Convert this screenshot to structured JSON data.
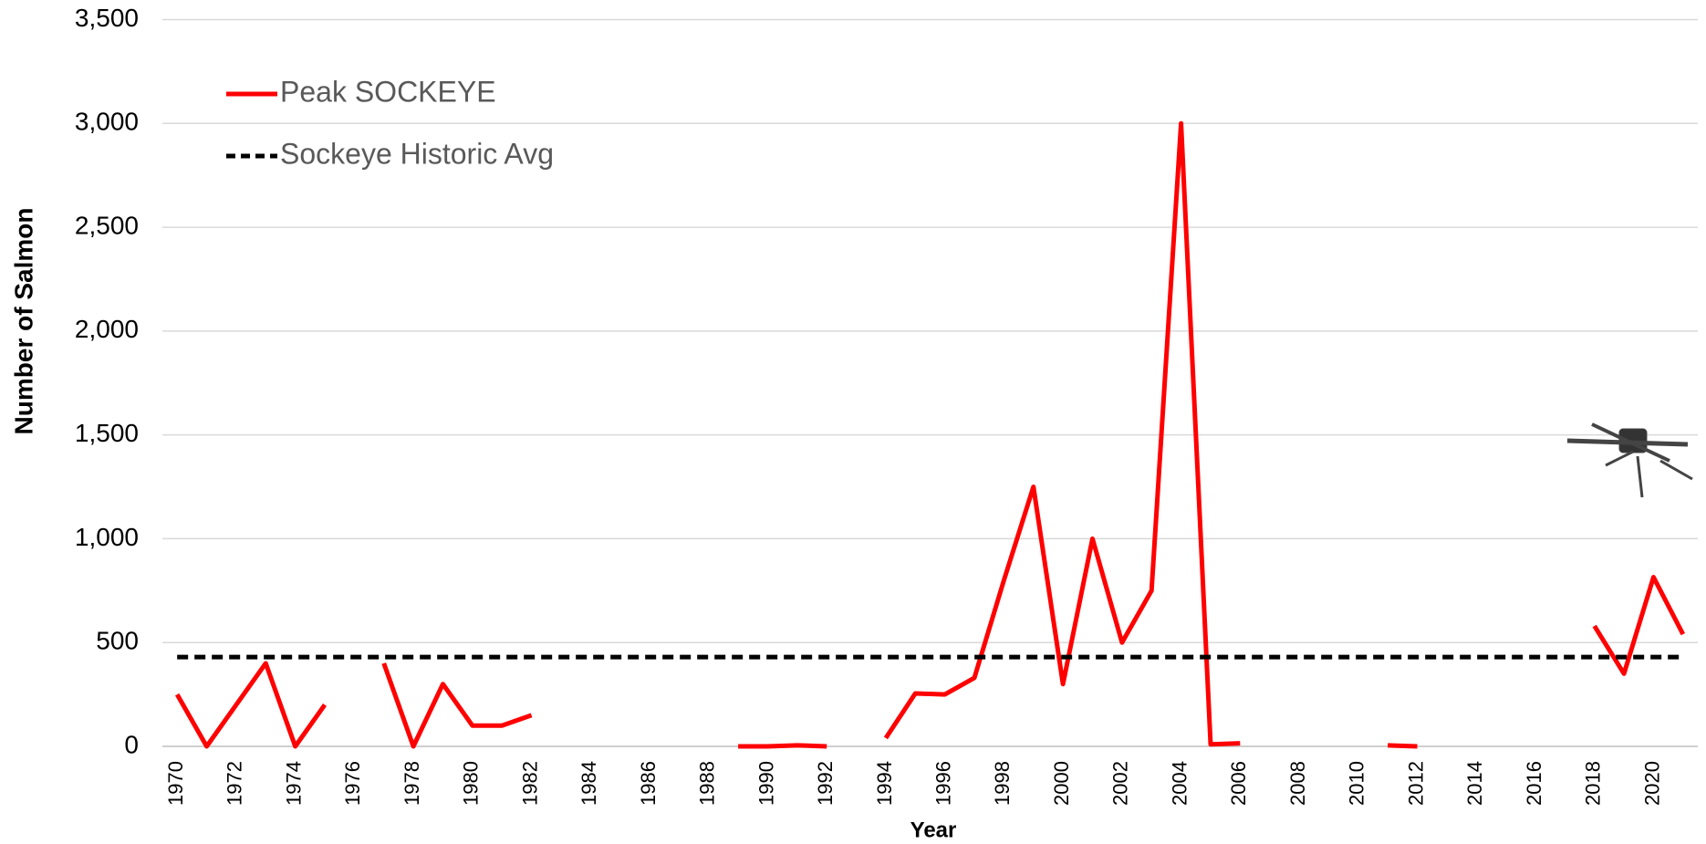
{
  "chart_data": {
    "type": "line",
    "categories": [
      "1970",
      null,
      "1972",
      null,
      "1974",
      null,
      "1976",
      null,
      "1978",
      null,
      "1980",
      null,
      "1982",
      null,
      "1984",
      null,
      "1986",
      null,
      "1988",
      null,
      "1990",
      null,
      "1992",
      null,
      "1994",
      null,
      "1996",
      null,
      "1998",
      null,
      "2000",
      null,
      "2002",
      null,
      "2004",
      null,
      "2006",
      null,
      "2008",
      null,
      "2010",
      null,
      "2012",
      null,
      "2014",
      null,
      "2016",
      null,
      "2018",
      null,
      "2020",
      null
    ],
    "series": [
      {
        "name": "Peak SOCKEYE",
        "color": "#ff0000",
        "dash": false,
        "values": [
          250,
          0,
          200,
          400,
          0,
          200,
          null,
          400,
          0,
          300,
          100,
          100,
          150,
          null,
          null,
          null,
          null,
          null,
          null,
          0,
          0,
          5,
          0,
          null,
          40,
          255,
          250,
          330,
          800,
          1250,
          300,
          1000,
          500,
          750,
          3000,
          10,
          15,
          null,
          null,
          null,
          null,
          5,
          0,
          null,
          null,
          null,
          null,
          null,
          580,
          350,
          815,
          540
        ]
      },
      {
        "name": "Sockeye Historic Avg",
        "color": "#000000",
        "dash": true,
        "values": [
          430,
          430,
          430,
          430,
          430,
          430,
          430,
          430,
          430,
          430,
          430,
          430,
          430,
          430,
          430,
          430,
          430,
          430,
          430,
          430,
          430,
          430,
          430,
          430,
          430,
          430,
          430,
          430,
          430,
          430,
          430,
          430,
          430,
          430,
          430,
          430,
          430,
          430,
          430,
          430,
          430,
          430,
          430,
          430,
          430,
          430,
          430,
          430,
          430,
          430,
          430,
          430
        ]
      }
    ],
    "ylim": [
      0,
      3500
    ],
    "yticks": [
      0,
      500,
      {
        "value": 1000,
        "label": "1,000"
      },
      {
        "value": 1500,
        "label": "1,500"
      },
      {
        "value": 2000,
        "label": "2,000"
      },
      {
        "value": 2500,
        "label": "2,500"
      },
      {
        "value": 3000,
        "label": "3,000"
      },
      {
        "value": 3500,
        "label": "3,500"
      }
    ],
    "x_label": "Year",
    "y_label": "Number of Salmon",
    "grid": true,
    "legend": "top-left"
  }
}
